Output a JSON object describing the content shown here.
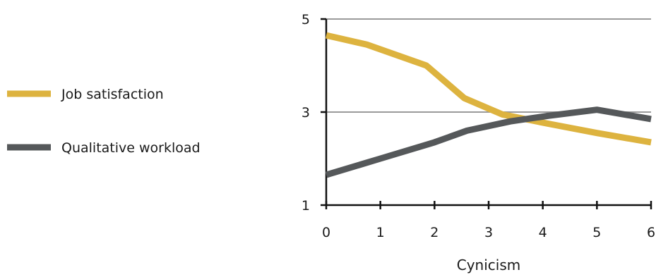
{
  "chart_data": {
    "type": "line",
    "title": "",
    "xlabel": "Cynicism",
    "ylabel": "",
    "x": [
      0,
      1,
      2,
      3,
      4,
      5,
      6
    ],
    "xlim": [
      0,
      6
    ],
    "ylim": [
      1,
      5
    ],
    "y_ticks": [
      1,
      3,
      5
    ],
    "grid": "horizontal",
    "legend_position": "left",
    "series": [
      {
        "name": "Job satisfaction",
        "color": "#DDB33F",
        "points": [
          [
            0,
            4.65
          ],
          [
            0.75,
            4.45
          ],
          [
            1.85,
            4.0
          ],
          [
            2.55,
            3.3
          ],
          [
            3.25,
            2.95
          ],
          [
            4.1,
            2.75
          ],
          [
            5.0,
            2.55
          ],
          [
            6.0,
            2.35
          ]
        ]
      },
      {
        "name": "Qualitative workload",
        "color": "#55585A",
        "points": [
          [
            0,
            1.65
          ],
          [
            1.0,
            2.0
          ],
          [
            2.0,
            2.35
          ],
          [
            2.6,
            2.6
          ],
          [
            3.4,
            2.8
          ],
          [
            4.1,
            2.92
          ],
          [
            5.0,
            3.05
          ],
          [
            6.0,
            2.85
          ]
        ]
      }
    ]
  }
}
